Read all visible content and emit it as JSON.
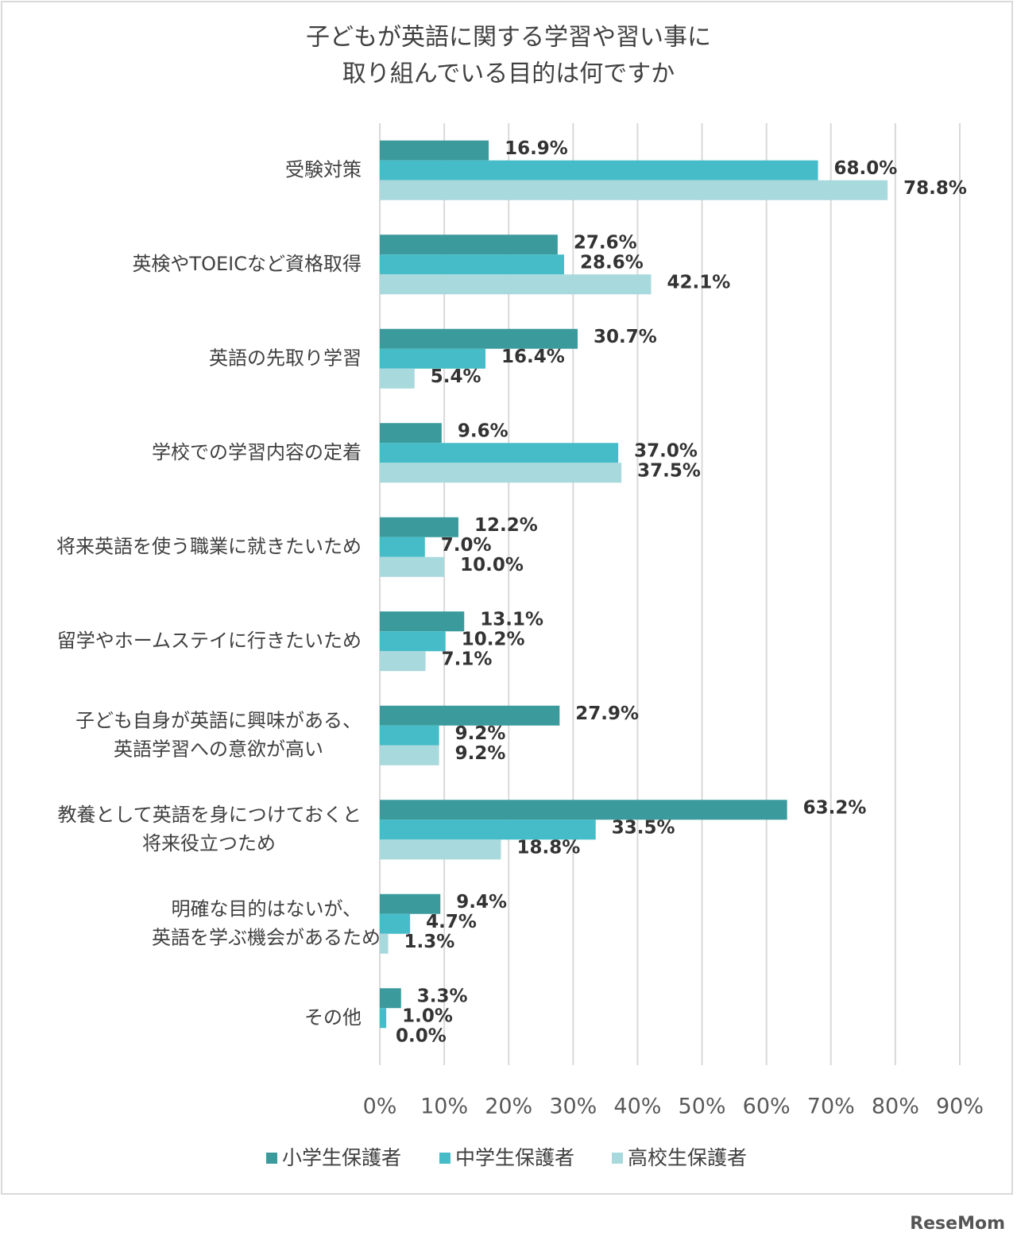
{
  "chart_data": {
    "type": "bar",
    "orientation": "horizontal",
    "title": [
      "子どもが英語に関する学習や習い事に",
      "取り組んでいる目的は何ですか"
    ],
    "categories": [
      "受験対策",
      "英検やTOEICなど資格取得",
      "英語の先取り学習",
      "学校での学習内容の定着",
      "将来英語を使う職業に就きたいため",
      "留学やホームステイに行きたいため",
      "子ども自身が英語に興味がある、\n英語学習への意欲が高い",
      "教養として英語を身につけておくと\n将来役立つため",
      "明確な目的はないが、\n英語を学ぶ機会があるため",
      "その他"
    ],
    "series": [
      {
        "name": "小学生保護者",
        "color": "#3a9a9c",
        "values": [
          16.9,
          27.6,
          30.7,
          9.6,
          12.2,
          13.1,
          27.9,
          63.2,
          9.4,
          3.3
        ],
        "value_labels": [
          "16.9%",
          "27.6%",
          "30.7%",
          "9.6%",
          "12.2%",
          "13.1%",
          "27.9%",
          "63.2%",
          "9.4%",
          "3.3%"
        ]
      },
      {
        "name": "中学生保護者",
        "color": "#45bcc8",
        "values": [
          68.0,
          28.6,
          16.4,
          37.0,
          7.0,
          10.2,
          9.2,
          33.5,
          4.7,
          1.0
        ],
        "value_labels": [
          "68.0%",
          "28.6%",
          "16.4%",
          "37.0%",
          "7.0%",
          "10.2%",
          "9.2%",
          "33.5%",
          "4.7%",
          "1.0%"
        ]
      },
      {
        "name": "高校生保護者",
        "color": "#a8d9dc",
        "values": [
          78.8,
          42.1,
          5.4,
          37.5,
          10.0,
          7.1,
          9.2,
          18.8,
          1.3,
          0.0
        ],
        "value_labels": [
          "78.8%",
          "42.1%",
          "5.4%",
          "37.5%",
          "10.0%",
          "7.1%",
          "9.2%",
          "18.8%",
          "1.3%",
          "0.0%"
        ]
      }
    ],
    "xlim": [
      0,
      90
    ],
    "xticks": [
      {
        "value": 0,
        "label": "0%"
      },
      {
        "value": 10,
        "label": "10%"
      },
      {
        "value": 20,
        "label": "20%"
      },
      {
        "value": 30,
        "label": "30%"
      },
      {
        "value": 40,
        "label": "40%"
      },
      {
        "value": 50,
        "label": "50%"
      },
      {
        "value": 60,
        "label": "60%"
      },
      {
        "value": 70,
        "label": "70%"
      },
      {
        "value": 80,
        "label": "80%"
      },
      {
        "value": 90,
        "label": "90%"
      }
    ],
    "grid": true,
    "legend": "bottom",
    "watermark": "ReseMom"
  }
}
